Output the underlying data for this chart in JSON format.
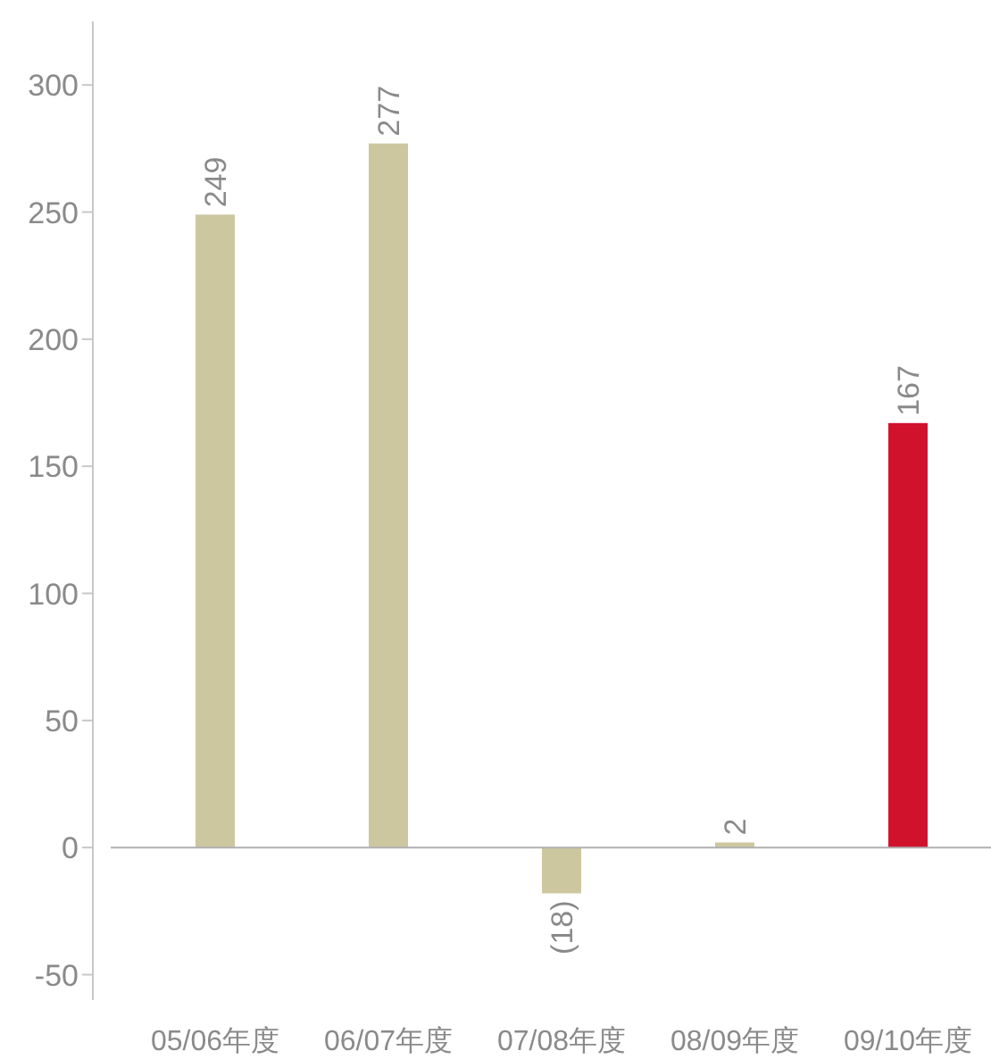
{
  "chart_data": {
    "type": "bar",
    "categories": [
      "05/06年度",
      "06/07年度",
      "07/08年度",
      "08/09年度",
      "09/10年度"
    ],
    "values": [
      249,
      277,
      -18,
      2,
      167
    ],
    "colors": [
      "#ccc79e",
      "#ccc79e",
      "#ccc79e",
      "#ccc79e",
      "#d0122d"
    ],
    "value_labels": [
      "249",
      "277",
      "(18)",
      "2",
      "167"
    ],
    "ylim": [
      -60,
      325
    ],
    "yticks": [
      -50,
      0,
      50,
      100,
      150,
      200,
      250,
      300
    ]
  }
}
